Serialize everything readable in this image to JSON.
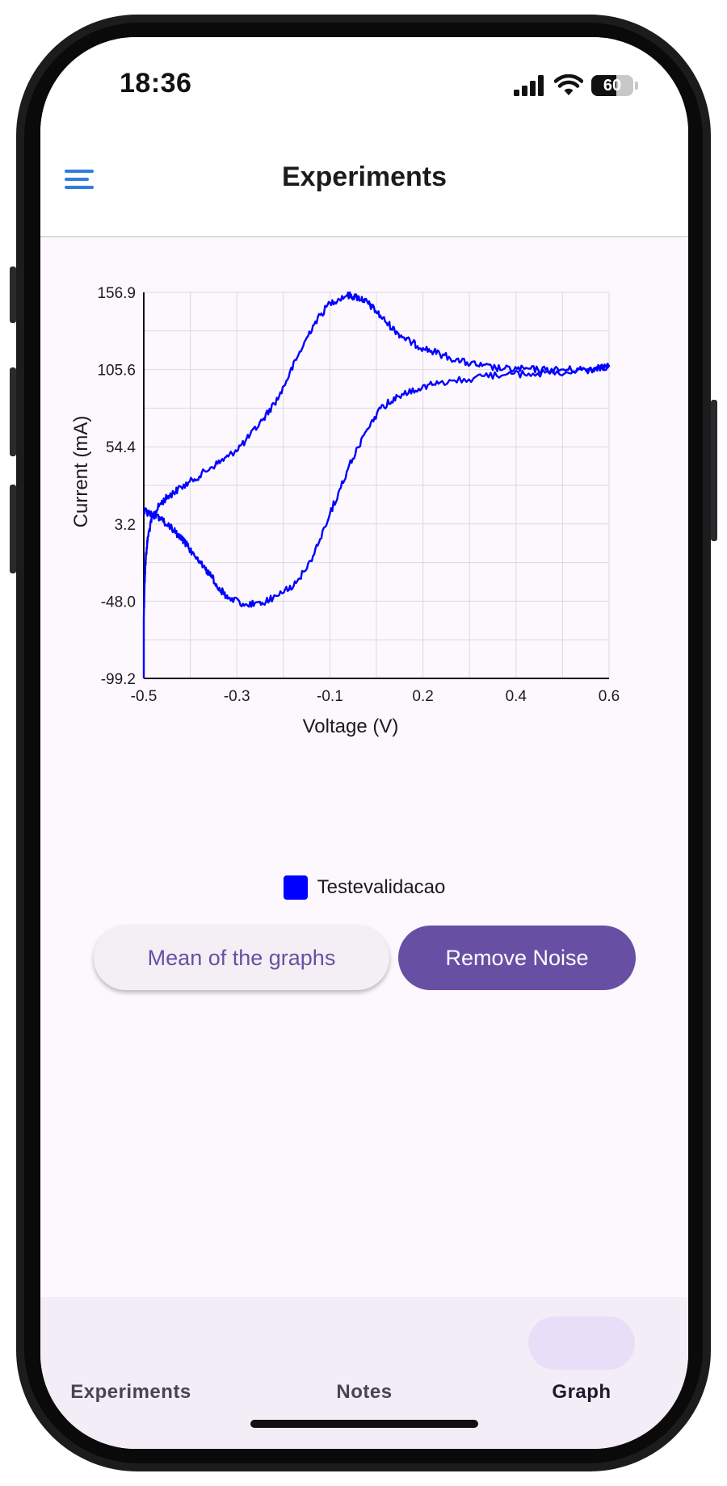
{
  "status_bar": {
    "time": "18:36",
    "battery": "60",
    "battery_level": 0.6
  },
  "app_bar": {
    "title": "Experiments",
    "menu_icon": "hamburger-menu-icon",
    "accent": "#2f7de1"
  },
  "chart_data": {
    "type": "line",
    "title": "",
    "xlabel": "Voltage (V)",
    "ylabel": "Current (mA)",
    "xlim": [
      -0.5,
      0.6
    ],
    "ylim": [
      -99.2,
      156.9
    ],
    "x_tick_labels": [
      "-0.5",
      "-0.3",
      "-0.1",
      "0.2",
      "0.4",
      "0.6"
    ],
    "y_tick_labels": [
      "156.9",
      "105.6",
      "54.4",
      "3.2",
      "-48.0",
      "-99.2"
    ],
    "grid": true,
    "legend_position": "bottom-center",
    "series": [
      {
        "name": "Testevalidacao",
        "color": "#0000ff",
        "x": [
          -0.5,
          -0.5,
          -0.498,
          -0.495,
          -0.49,
          -0.48,
          -0.46,
          -0.44,
          -0.42,
          -0.38,
          -0.34,
          -0.3,
          -0.26,
          -0.22,
          -0.18,
          -0.14,
          -0.1,
          -0.06,
          -0.02,
          0.0,
          0.02,
          0.04,
          0.07,
          0.1,
          0.13,
          0.16,
          0.2,
          0.25,
          0.3,
          0.35,
          0.4,
          0.45,
          0.5,
          0.55,
          0.6,
          0.57,
          0.5,
          0.42,
          0.35,
          0.28,
          0.2,
          0.15,
          0.1,
          0.06,
          0.02,
          -0.02,
          -0.06,
          -0.1,
          -0.14,
          -0.18,
          -0.22,
          -0.26,
          -0.3,
          -0.32,
          -0.34,
          -0.36,
          -0.38,
          -0.4,
          -0.42,
          -0.44,
          -0.46,
          -0.48,
          -0.5
        ],
        "y": [
          -99.2,
          -60,
          -35,
          -18,
          -5,
          8,
          17,
          22,
          26,
          33,
          41,
          48,
          58,
          72,
          88,
          112,
          135,
          150,
          155,
          154,
          152,
          147,
          138,
          130,
          124,
          120,
          116,
          111,
          108,
          106,
          106,
          105.5,
          105.6,
          106,
          108,
          106,
          104,
          103,
          102,
          100,
          97,
          93,
          88,
          80,
          62,
          38,
          10,
          -18,
          -36,
          -44,
          -49,
          -50,
          -46,
          -40,
          -32,
          -25,
          -18,
          -10,
          -4,
          2,
          6,
          9,
          12
        ]
      }
    ]
  },
  "actions": {
    "mean_label": "Mean of the graphs",
    "remove_noise_label": "Remove Noise"
  },
  "bottom_nav": {
    "items": [
      {
        "label": "Experiments"
      },
      {
        "label": "Notes"
      },
      {
        "label": "Graph"
      }
    ],
    "active_index": 2
  }
}
